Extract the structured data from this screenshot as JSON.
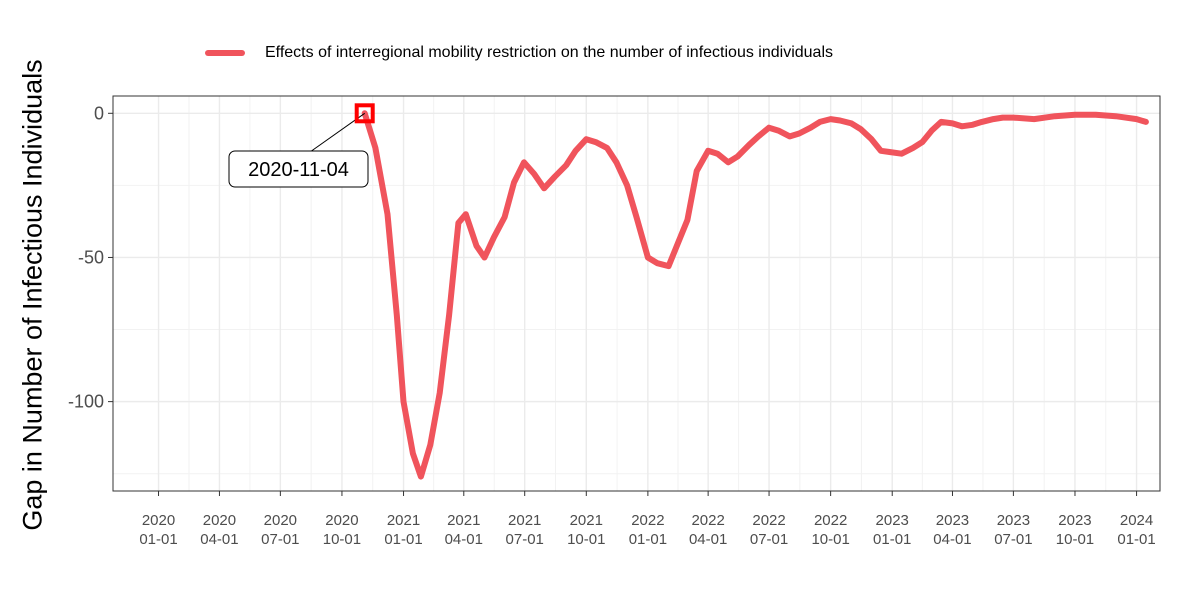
{
  "legend": {
    "label": "Effects of interregional mobility restriction on the number of infectious individuals",
    "color": "#f0545c"
  },
  "ylabel": "Gap in Number of Infectious Individuals",
  "annotation": {
    "label": "2020-11-04",
    "date": "2020-11-04",
    "value": 0,
    "marker_color": "#ff0000"
  },
  "chart_data": {
    "type": "line",
    "title": "",
    "xlabel": "",
    "ylabel": "Gap in Number of Infectious Individuals",
    "xlim": [
      "2019-10-25",
      "2024-02-05"
    ],
    "ylim": [
      -131,
      6
    ],
    "grid": true,
    "legend_position": "top",
    "x_ticks": [
      {
        "date": "2020-01-01",
        "line1": "2020",
        "line2": "01-01"
      },
      {
        "date": "2020-04-01",
        "line1": "2020",
        "line2": "04-01"
      },
      {
        "date": "2020-07-01",
        "line1": "2020",
        "line2": "07-01"
      },
      {
        "date": "2020-10-01",
        "line1": "2020",
        "line2": "10-01"
      },
      {
        "date": "2021-01-01",
        "line1": "2021",
        "line2": "01-01"
      },
      {
        "date": "2021-04-01",
        "line1": "2021",
        "line2": "04-01"
      },
      {
        "date": "2021-07-01",
        "line1": "2021",
        "line2": "07-01"
      },
      {
        "date": "2021-10-01",
        "line1": "2021",
        "line2": "10-01"
      },
      {
        "date": "2022-01-01",
        "line1": "2022",
        "line2": "01-01"
      },
      {
        "date": "2022-04-01",
        "line1": "2022",
        "line2": "04-01"
      },
      {
        "date": "2022-07-01",
        "line1": "2022",
        "line2": "07-01"
      },
      {
        "date": "2022-10-01",
        "line1": "2022",
        "line2": "10-01"
      },
      {
        "date": "2023-01-01",
        "line1": "2023",
        "line2": "01-01"
      },
      {
        "date": "2023-04-01",
        "line1": "2023",
        "line2": "04-01"
      },
      {
        "date": "2023-07-01",
        "line1": "2023",
        "line2": "07-01"
      },
      {
        "date": "2023-10-01",
        "line1": "2023",
        "line2": "10-01"
      },
      {
        "date": "2024-01-01",
        "line1": "2024",
        "line2": "01-01"
      }
    ],
    "y_ticks": [
      {
        "value": 0,
        "label": "0"
      },
      {
        "value": -50,
        "label": "-50"
      },
      {
        "value": -100,
        "label": "-100"
      }
    ],
    "series": [
      {
        "name": "Effects of interregional mobility restriction on the number of infectious individuals",
        "color": "#f0545c",
        "points": [
          {
            "date": "2020-11-04",
            "y": 0
          },
          {
            "date": "2020-11-20",
            "y": -12
          },
          {
            "date": "2020-12-08",
            "y": -35
          },
          {
            "date": "2020-12-22",
            "y": -70
          },
          {
            "date": "2021-01-01",
            "y": -100
          },
          {
            "date": "2021-01-15",
            "y": -118
          },
          {
            "date": "2021-01-27",
            "y": -126
          },
          {
            "date": "2021-02-10",
            "y": -115
          },
          {
            "date": "2021-02-24",
            "y": -97
          },
          {
            "date": "2021-03-10",
            "y": -70
          },
          {
            "date": "2021-03-24",
            "y": -38
          },
          {
            "date": "2021-04-04",
            "y": -35
          },
          {
            "date": "2021-04-20",
            "y": -46
          },
          {
            "date": "2021-05-02",
            "y": -50
          },
          {
            "date": "2021-05-16",
            "y": -43
          },
          {
            "date": "2021-06-01",
            "y": -36
          },
          {
            "date": "2021-06-15",
            "y": -24
          },
          {
            "date": "2021-06-30",
            "y": -17
          },
          {
            "date": "2021-07-15",
            "y": -21
          },
          {
            "date": "2021-07-30",
            "y": -26
          },
          {
            "date": "2021-08-15",
            "y": -22
          },
          {
            "date": "2021-09-01",
            "y": -18
          },
          {
            "date": "2021-09-15",
            "y": -13
          },
          {
            "date": "2021-10-01",
            "y": -9
          },
          {
            "date": "2021-10-15",
            "y": -10
          },
          {
            "date": "2021-11-01",
            "y": -12
          },
          {
            "date": "2021-11-15",
            "y": -17
          },
          {
            "date": "2021-12-01",
            "y": -25
          },
          {
            "date": "2021-12-15",
            "y": -36
          },
          {
            "date": "2022-01-01",
            "y": -50
          },
          {
            "date": "2022-01-15",
            "y": -52
          },
          {
            "date": "2022-02-01",
            "y": -53
          },
          {
            "date": "2022-02-15",
            "y": -45
          },
          {
            "date": "2022-03-01",
            "y": -37
          },
          {
            "date": "2022-03-15",
            "y": -20
          },
          {
            "date": "2022-04-01",
            "y": -13
          },
          {
            "date": "2022-04-15",
            "y": -14
          },
          {
            "date": "2022-05-01",
            "y": -17
          },
          {
            "date": "2022-05-15",
            "y": -15
          },
          {
            "date": "2022-06-01",
            "y": -11
          },
          {
            "date": "2022-06-15",
            "y": -8
          },
          {
            "date": "2022-07-01",
            "y": -5
          },
          {
            "date": "2022-07-15",
            "y": -6
          },
          {
            "date": "2022-08-01",
            "y": -8
          },
          {
            "date": "2022-08-15",
            "y": -7
          },
          {
            "date": "2022-09-01",
            "y": -5
          },
          {
            "date": "2022-09-15",
            "y": -3
          },
          {
            "date": "2022-10-01",
            "y": -2
          },
          {
            "date": "2022-10-15",
            "y": -2.5
          },
          {
            "date": "2022-11-01",
            "y": -3.5
          },
          {
            "date": "2022-11-15",
            "y": -5.5
          },
          {
            "date": "2022-12-01",
            "y": -9
          },
          {
            "date": "2022-12-15",
            "y": -13
          },
          {
            "date": "2023-01-15",
            "y": -14
          },
          {
            "date": "2023-02-01",
            "y": -12
          },
          {
            "date": "2023-02-15",
            "y": -10
          },
          {
            "date": "2023-03-01",
            "y": -6
          },
          {
            "date": "2023-03-15",
            "y": -3
          },
          {
            "date": "2023-04-01",
            "y": -3.5
          },
          {
            "date": "2023-04-15",
            "y": -4.5
          },
          {
            "date": "2023-05-01",
            "y": -4
          },
          {
            "date": "2023-05-15",
            "y": -3
          },
          {
            "date": "2023-06-01",
            "y": -2
          },
          {
            "date": "2023-06-15",
            "y": -1.5
          },
          {
            "date": "2023-07-01",
            "y": -1.5
          },
          {
            "date": "2023-08-01",
            "y": -2
          },
          {
            "date": "2023-09-01",
            "y": -1
          },
          {
            "date": "2023-10-01",
            "y": -0.5
          },
          {
            "date": "2023-11-01",
            "y": -0.5
          },
          {
            "date": "2023-12-01",
            "y": -1
          },
          {
            "date": "2024-01-01",
            "y": -2
          },
          {
            "date": "2024-01-15",
            "y": -3
          }
        ]
      }
    ]
  }
}
